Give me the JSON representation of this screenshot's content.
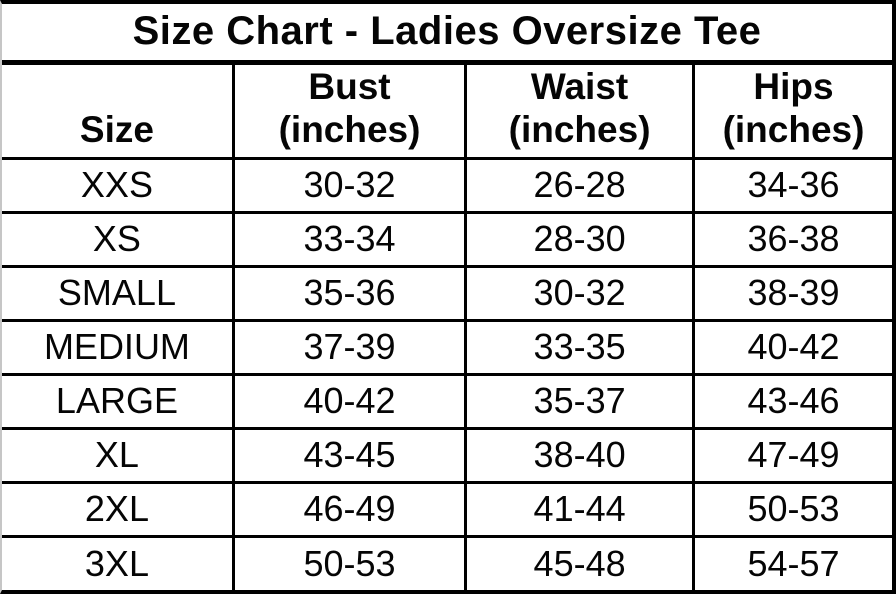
{
  "title": "Size Chart - Ladies Oversize Tee",
  "table": {
    "columns": [
      {
        "label": "Size",
        "sublabel": ""
      },
      {
        "label": "Bust",
        "sublabel": "(inches)"
      },
      {
        "label": "Waist",
        "sublabel": "(inches)"
      },
      {
        "label": "Hips",
        "sublabel": "(inches)"
      }
    ],
    "rows": [
      {
        "size": "XXS",
        "bust": "30-32",
        "waist": "26-28",
        "hips": "34-36"
      },
      {
        "size": "XS",
        "bust": "33-34",
        "waist": "28-30",
        "hips": "36-38"
      },
      {
        "size": "SMALL",
        "bust": "35-36",
        "waist": "30-32",
        "hips": "38-39"
      },
      {
        "size": "MEDIUM",
        "bust": "37-39",
        "waist": "33-35",
        "hips": "40-42"
      },
      {
        "size": "LARGE",
        "bust": "40-42",
        "waist": "35-37",
        "hips": "43-46"
      },
      {
        "size": "XL",
        "bust": "43-45",
        "waist": "38-40",
        "hips": "47-49"
      },
      {
        "size": "2XL",
        "bust": "46-49",
        "waist": "41-44",
        "hips": "50-53"
      },
      {
        "size": "3XL",
        "bust": "50-53",
        "waist": "45-48",
        "hips": "54-57"
      }
    ]
  },
  "chart_data": {
    "type": "table",
    "title": "Size Chart - Ladies Oversize Tee",
    "columns": [
      "Size",
      "Bust (inches)",
      "Waist (inches)",
      "Hips (inches)"
    ],
    "rows": [
      [
        "XXS",
        "30-32",
        "26-28",
        "34-36"
      ],
      [
        "XS",
        "33-34",
        "28-30",
        "36-38"
      ],
      [
        "SMALL",
        "35-36",
        "30-32",
        "38-39"
      ],
      [
        "MEDIUM",
        "37-39",
        "33-35",
        "40-42"
      ],
      [
        "LARGE",
        "40-42",
        "35-37",
        "43-46"
      ],
      [
        "XL",
        "43-45",
        "38-40",
        "47-49"
      ],
      [
        "2XL",
        "46-49",
        "41-44",
        "50-53"
      ],
      [
        "3XL",
        "50-53",
        "45-48",
        "54-57"
      ]
    ]
  },
  "colors": {
    "background": "#ffffff",
    "border": "#000000",
    "text": "#050505",
    "left_edge": "#c6c6c6"
  }
}
